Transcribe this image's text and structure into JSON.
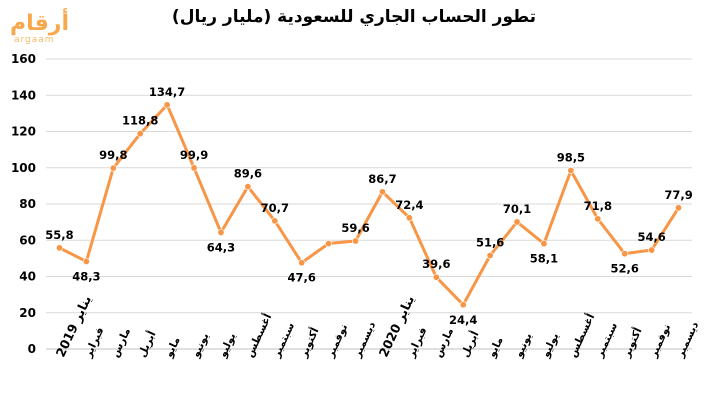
{
  "logo": {
    "text": "أرقام",
    "subtext": "argaam"
  },
  "chart_data": {
    "type": "line",
    "title": "تطور الحساب الجاري للسعودية (مليار ريال)",
    "xlabel": "",
    "ylabel": "",
    "ylim": [
      0,
      160
    ],
    "yticks": [
      0,
      20,
      40,
      60,
      80,
      100,
      120,
      140,
      160
    ],
    "grid": true,
    "legend": "none",
    "color": "#f79646",
    "categories": [
      "يناير 2019",
      "فبراير",
      "مارس",
      "أبريل",
      "مايو",
      "يونيو",
      "يوليو",
      "أغسطس",
      "سبتمبر",
      "أكتوبر",
      "نوفمبر",
      "ديسمبر",
      "يناير 2020",
      "فبراير",
      "مارس",
      "أبريل",
      "مايو",
      "يونيو",
      "يوليو",
      "أغسطس",
      "سبتمبر",
      "أكتوبر",
      "نوفمبر",
      "ديسمبر"
    ],
    "values": [
      55.8,
      48.3,
      99.8,
      118.8,
      134.7,
      99.9,
      64.3,
      89.6,
      70.7,
      47.6,
      58.2,
      59.6,
      86.7,
      72.4,
      39.6,
      24.4,
      51.6,
      70.1,
      58.1,
      98.5,
      71.8,
      52.6,
      54.6,
      77.9
    ],
    "labels": [
      "55,8",
      "48,3",
      "99,8",
      "118,8",
      "134,7",
      "99,9",
      "64,3",
      "89,6",
      "70,7",
      "47,6",
      "",
      "59,6",
      "86,7",
      "72,4",
      "39,6",
      "24,4",
      "51,6",
      "70,1",
      "58,1",
      "98,5",
      "71,8",
      "52,6",
      "54,6",
      "77,9"
    ]
  }
}
